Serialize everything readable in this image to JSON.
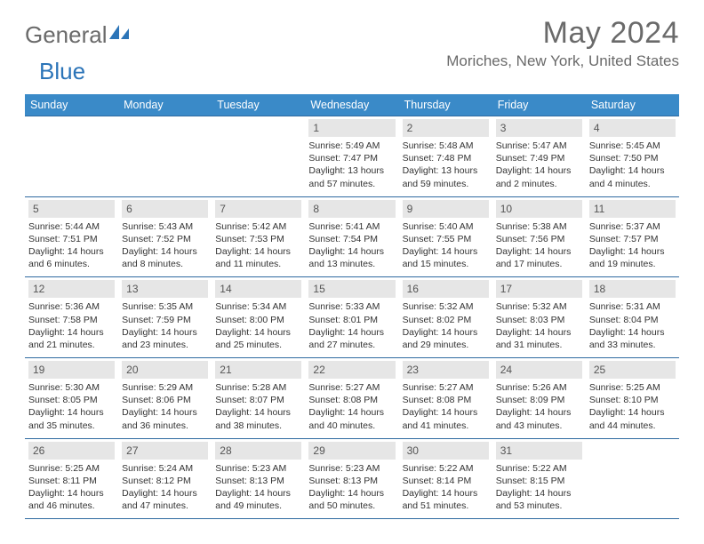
{
  "brand": {
    "part1": "General",
    "part2": "Blue"
  },
  "title": "May 2024",
  "location": "Moriches, New York, United States",
  "colors": {
    "header_bar": "#3a8ac8",
    "rule": "#2f6aa0",
    "daynum_bg": "#e6e6e6",
    "text_gray": "#6a6a6a",
    "brand_blue": "#2b74b8"
  },
  "dow": [
    "Sunday",
    "Monday",
    "Tuesday",
    "Wednesday",
    "Thursday",
    "Friday",
    "Saturday"
  ],
  "weeks": [
    [
      null,
      null,
      null,
      {
        "n": "1",
        "sr": "Sunrise: 5:49 AM",
        "ss": "Sunset: 7:47 PM",
        "dl": "Daylight: 13 hours and 57 minutes."
      },
      {
        "n": "2",
        "sr": "Sunrise: 5:48 AM",
        "ss": "Sunset: 7:48 PM",
        "dl": "Daylight: 13 hours and 59 minutes."
      },
      {
        "n": "3",
        "sr": "Sunrise: 5:47 AM",
        "ss": "Sunset: 7:49 PM",
        "dl": "Daylight: 14 hours and 2 minutes."
      },
      {
        "n": "4",
        "sr": "Sunrise: 5:45 AM",
        "ss": "Sunset: 7:50 PM",
        "dl": "Daylight: 14 hours and 4 minutes."
      }
    ],
    [
      {
        "n": "5",
        "sr": "Sunrise: 5:44 AM",
        "ss": "Sunset: 7:51 PM",
        "dl": "Daylight: 14 hours and 6 minutes."
      },
      {
        "n": "6",
        "sr": "Sunrise: 5:43 AM",
        "ss": "Sunset: 7:52 PM",
        "dl": "Daylight: 14 hours and 8 minutes."
      },
      {
        "n": "7",
        "sr": "Sunrise: 5:42 AM",
        "ss": "Sunset: 7:53 PM",
        "dl": "Daylight: 14 hours and 11 minutes."
      },
      {
        "n": "8",
        "sr": "Sunrise: 5:41 AM",
        "ss": "Sunset: 7:54 PM",
        "dl": "Daylight: 14 hours and 13 minutes."
      },
      {
        "n": "9",
        "sr": "Sunrise: 5:40 AM",
        "ss": "Sunset: 7:55 PM",
        "dl": "Daylight: 14 hours and 15 minutes."
      },
      {
        "n": "10",
        "sr": "Sunrise: 5:38 AM",
        "ss": "Sunset: 7:56 PM",
        "dl": "Daylight: 14 hours and 17 minutes."
      },
      {
        "n": "11",
        "sr": "Sunrise: 5:37 AM",
        "ss": "Sunset: 7:57 PM",
        "dl": "Daylight: 14 hours and 19 minutes."
      }
    ],
    [
      {
        "n": "12",
        "sr": "Sunrise: 5:36 AM",
        "ss": "Sunset: 7:58 PM",
        "dl": "Daylight: 14 hours and 21 minutes."
      },
      {
        "n": "13",
        "sr": "Sunrise: 5:35 AM",
        "ss": "Sunset: 7:59 PM",
        "dl": "Daylight: 14 hours and 23 minutes."
      },
      {
        "n": "14",
        "sr": "Sunrise: 5:34 AM",
        "ss": "Sunset: 8:00 PM",
        "dl": "Daylight: 14 hours and 25 minutes."
      },
      {
        "n": "15",
        "sr": "Sunrise: 5:33 AM",
        "ss": "Sunset: 8:01 PM",
        "dl": "Daylight: 14 hours and 27 minutes."
      },
      {
        "n": "16",
        "sr": "Sunrise: 5:32 AM",
        "ss": "Sunset: 8:02 PM",
        "dl": "Daylight: 14 hours and 29 minutes."
      },
      {
        "n": "17",
        "sr": "Sunrise: 5:32 AM",
        "ss": "Sunset: 8:03 PM",
        "dl": "Daylight: 14 hours and 31 minutes."
      },
      {
        "n": "18",
        "sr": "Sunrise: 5:31 AM",
        "ss": "Sunset: 8:04 PM",
        "dl": "Daylight: 14 hours and 33 minutes."
      }
    ],
    [
      {
        "n": "19",
        "sr": "Sunrise: 5:30 AM",
        "ss": "Sunset: 8:05 PM",
        "dl": "Daylight: 14 hours and 35 minutes."
      },
      {
        "n": "20",
        "sr": "Sunrise: 5:29 AM",
        "ss": "Sunset: 8:06 PM",
        "dl": "Daylight: 14 hours and 36 minutes."
      },
      {
        "n": "21",
        "sr": "Sunrise: 5:28 AM",
        "ss": "Sunset: 8:07 PM",
        "dl": "Daylight: 14 hours and 38 minutes."
      },
      {
        "n": "22",
        "sr": "Sunrise: 5:27 AM",
        "ss": "Sunset: 8:08 PM",
        "dl": "Daylight: 14 hours and 40 minutes."
      },
      {
        "n": "23",
        "sr": "Sunrise: 5:27 AM",
        "ss": "Sunset: 8:08 PM",
        "dl": "Daylight: 14 hours and 41 minutes."
      },
      {
        "n": "24",
        "sr": "Sunrise: 5:26 AM",
        "ss": "Sunset: 8:09 PM",
        "dl": "Daylight: 14 hours and 43 minutes."
      },
      {
        "n": "25",
        "sr": "Sunrise: 5:25 AM",
        "ss": "Sunset: 8:10 PM",
        "dl": "Daylight: 14 hours and 44 minutes."
      }
    ],
    [
      {
        "n": "26",
        "sr": "Sunrise: 5:25 AM",
        "ss": "Sunset: 8:11 PM",
        "dl": "Daylight: 14 hours and 46 minutes."
      },
      {
        "n": "27",
        "sr": "Sunrise: 5:24 AM",
        "ss": "Sunset: 8:12 PM",
        "dl": "Daylight: 14 hours and 47 minutes."
      },
      {
        "n": "28",
        "sr": "Sunrise: 5:23 AM",
        "ss": "Sunset: 8:13 PM",
        "dl": "Daylight: 14 hours and 49 minutes."
      },
      {
        "n": "29",
        "sr": "Sunrise: 5:23 AM",
        "ss": "Sunset: 8:13 PM",
        "dl": "Daylight: 14 hours and 50 minutes."
      },
      {
        "n": "30",
        "sr": "Sunrise: 5:22 AM",
        "ss": "Sunset: 8:14 PM",
        "dl": "Daylight: 14 hours and 51 minutes."
      },
      {
        "n": "31",
        "sr": "Sunrise: 5:22 AM",
        "ss": "Sunset: 8:15 PM",
        "dl": "Daylight: 14 hours and 53 minutes."
      },
      null
    ]
  ]
}
